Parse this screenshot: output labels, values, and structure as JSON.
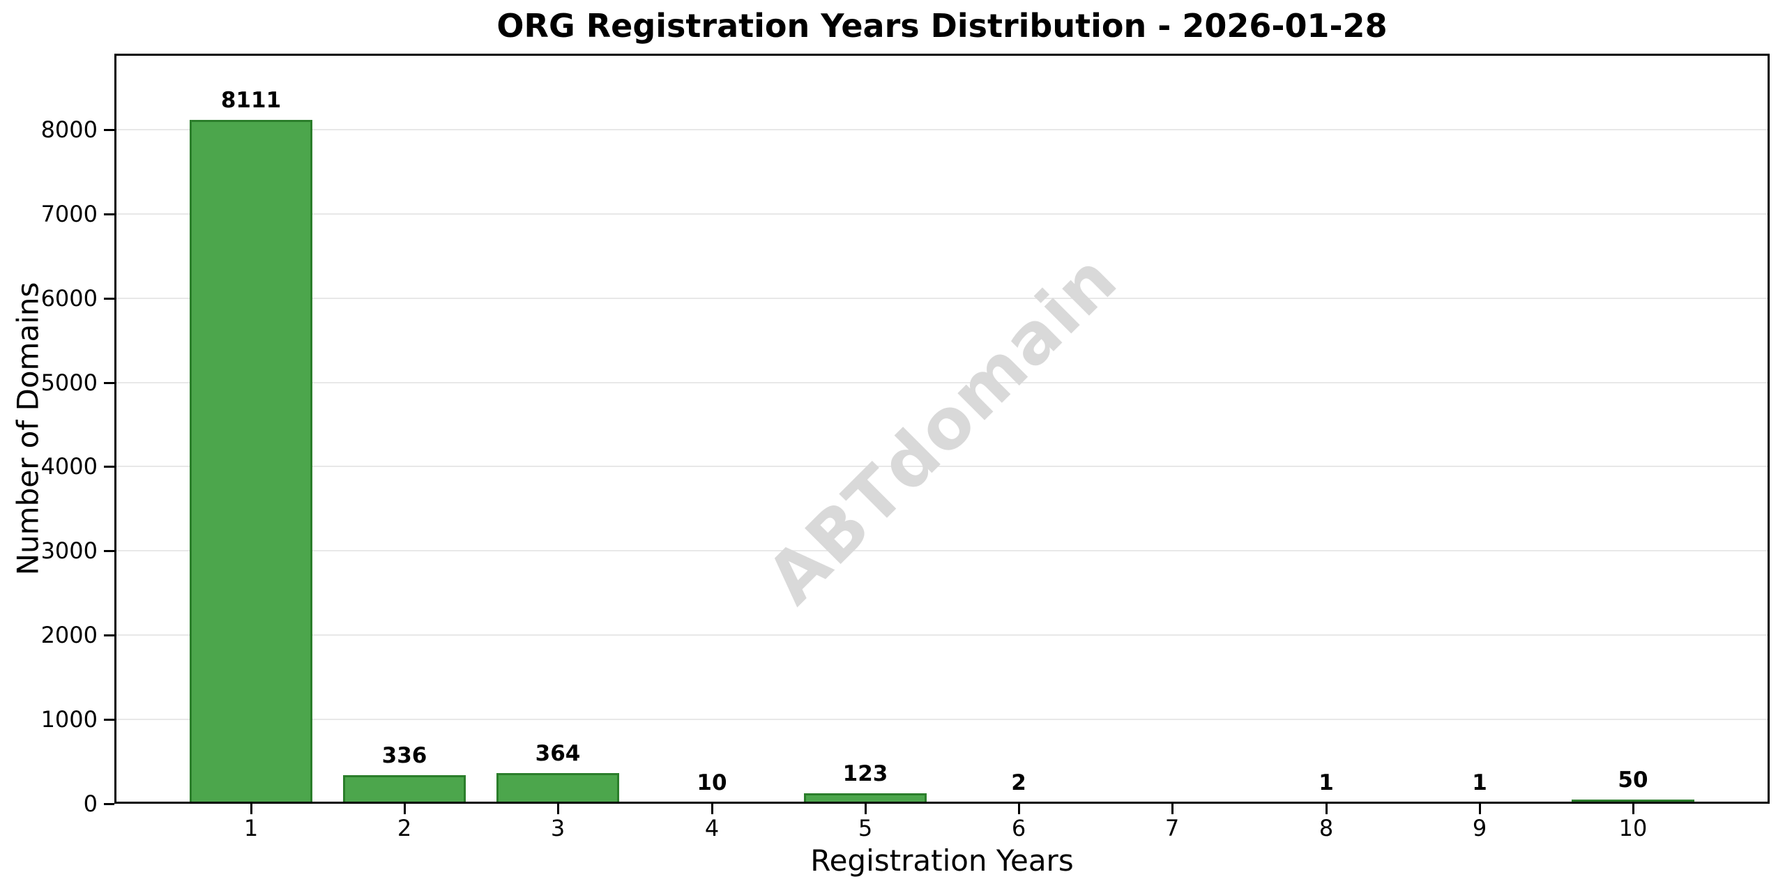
{
  "chart_data": {
    "type": "bar",
    "title": "ORG Registration Years Distribution - 2026-01-28",
    "xlabel": "Registration Years",
    "ylabel": "Number of Domains",
    "categories": [
      "1",
      "2",
      "3",
      "4",
      "5",
      "6",
      "7",
      "8",
      "9",
      "10"
    ],
    "values": [
      8111,
      336,
      364,
      10,
      123,
      2,
      0,
      1,
      1,
      50
    ],
    "bar_labels": [
      "8111",
      "336",
      "364",
      "10",
      "123",
      "2",
      "",
      "1",
      "1",
      "50"
    ],
    "yticks": [
      0,
      1000,
      2000,
      3000,
      4000,
      5000,
      6000,
      7000,
      8000
    ],
    "ylim": [
      0,
      8900
    ],
    "xlim": [
      0.11,
      10.89
    ],
    "bar_width": 0.8,
    "grid": "horizontal-only",
    "legend_position": "none",
    "watermark": {
      "text": "ABTdomain",
      "rotation_deg": 45
    },
    "colors": {
      "bar_fill": "#4ca64c",
      "bar_edge": "#2b7e2b",
      "grid": "#e8e8e8",
      "spine": "#000000",
      "watermark": "#d9d9d9",
      "background": "#ffffff"
    }
  }
}
